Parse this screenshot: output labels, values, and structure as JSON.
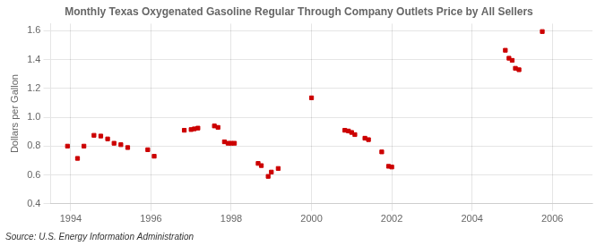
{
  "chart_data": {
    "type": "scatter",
    "title": "Monthly Texas Oxygenated Gasoline Regular Through Company Outlets Price by All Sellers",
    "ylabel": "Dollars per Gallon",
    "annotations": [
      "Source: U.S. Energy Information Administration"
    ],
    "color": "#cc0000",
    "marker": "square",
    "grid": true,
    "xlim": [
      1993.5,
      2007.0
    ],
    "ylim": [
      0.4,
      1.65
    ],
    "xticks": [
      1994,
      1996,
      1998,
      2000,
      2002,
      2004,
      2006
    ],
    "yticks": [
      0.4,
      0.6,
      0.8,
      {
        "value": 1.0,
        "label": "1.0"
      },
      1.2,
      1.4,
      1.6
    ],
    "x": [
      1993.92,
      1994.17,
      1994.33,
      1994.58,
      1994.75,
      1994.92,
      1995.08,
      1995.25,
      1995.42,
      1995.92,
      1996.08,
      1996.83,
      1997.0,
      1997.08,
      1997.17,
      1997.58,
      1997.67,
      1997.83,
      1997.92,
      1998.0,
      1998.08,
      1998.67,
      1998.75,
      1998.92,
      1999.0,
      1999.17,
      2000.0,
      2000.83,
      2000.92,
      2001.0,
      2001.08,
      2001.33,
      2001.42,
      2001.75,
      2001.92,
      2002.0,
      2004.83,
      2004.92,
      2005.0,
      2005.08,
      2005.17,
      2005.75
    ],
    "values": [
      0.8,
      0.715,
      0.8,
      0.875,
      0.87,
      0.85,
      0.82,
      0.81,
      0.79,
      0.775,
      0.73,
      0.91,
      0.915,
      0.92,
      0.925,
      0.94,
      0.93,
      0.83,
      0.82,
      0.82,
      0.82,
      0.68,
      0.665,
      0.59,
      0.62,
      0.645,
      1.135,
      0.91,
      0.905,
      0.895,
      0.88,
      0.855,
      0.845,
      0.76,
      0.66,
      0.655,
      1.465,
      1.41,
      1.395,
      1.34,
      1.33,
      1.595
    ]
  }
}
